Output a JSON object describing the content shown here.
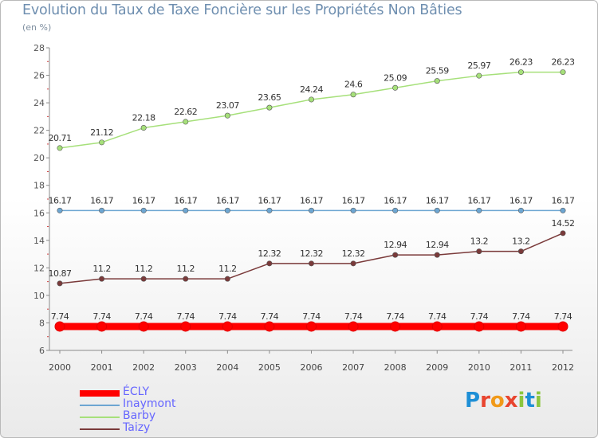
{
  "page": {
    "title": "Evolution du Taux de Taxe Foncière sur les Propriétés Non Bâties",
    "unit": "(en %)"
  },
  "logo": {
    "text": "Proxiti",
    "colors": [
      "#1e8fd6",
      "#e8452f",
      "#f19a1a",
      "#e8452f",
      "#8cc63f",
      "#1e8fd6",
      "#8cc63f"
    ]
  },
  "chart_data": {
    "type": "line",
    "title": "Evolution du Taux de Taxe Foncière sur les Propriétés Non Bâties",
    "ylabel": "(en %)",
    "xlabel": "",
    "ylim": [
      6,
      28
    ],
    "yticks": [
      6,
      8,
      10,
      12,
      14,
      16,
      18,
      20,
      22,
      24,
      26,
      28
    ],
    "categories": [
      "2000",
      "2001",
      "2002",
      "2003",
      "2004",
      "2005",
      "2006",
      "2007",
      "2008",
      "2009",
      "2010",
      "2011",
      "2012"
    ],
    "grid": false,
    "legend_position": "bottom-left",
    "series": [
      {
        "name": "ÉCLY",
        "color": "#ff0000",
        "values": [
          7.74,
          7.74,
          7.74,
          7.74,
          7.74,
          7.74,
          7.74,
          7.74,
          7.74,
          7.74,
          7.74,
          7.74,
          7.74
        ],
        "labels": [
          "7.74",
          "7.74",
          "7.74",
          "7.74",
          "7.74",
          "7.74",
          "7.74",
          "7.74",
          "7.74",
          "7.74",
          "7.74",
          "7.74",
          "7.74"
        ]
      },
      {
        "name": "Inaymont",
        "color": "#6da6d2",
        "values": [
          16.17,
          16.17,
          16.17,
          16.17,
          16.17,
          16.17,
          16.17,
          16.17,
          16.17,
          16.17,
          16.17,
          16.17,
          16.17
        ],
        "labels": [
          "16.17",
          "16.17",
          "16.17",
          "16.17",
          "16.17",
          "16.17",
          "16.17",
          "16.17",
          "16.17",
          "16.17",
          "16.17",
          "16.17",
          "16.17"
        ]
      },
      {
        "name": "Barby",
        "color": "#a6e07a",
        "values": [
          20.71,
          21.12,
          22.18,
          22.62,
          23.07,
          23.65,
          24.24,
          24.6,
          25.09,
          25.59,
          25.97,
          26.23,
          26.23
        ],
        "labels": [
          "20.71",
          "21.12",
          "22.18",
          "22.62",
          "23.07",
          "23.65",
          "24.24",
          "24.6",
          "25.09",
          "25.59",
          "25.97",
          "26.23",
          "26.23"
        ]
      },
      {
        "name": "Taizy",
        "color": "#7a3a3a",
        "values": [
          10.87,
          11.2,
          11.2,
          11.2,
          11.2,
          12.32,
          12.32,
          12.32,
          12.94,
          12.94,
          13.2,
          13.2,
          14.52
        ],
        "labels": [
          "10.87",
          "11.2",
          "11.2",
          "11.2",
          "11.2",
          "12.32",
          "12.32",
          "12.32",
          "12.94",
          "12.94",
          "13.2",
          "13.2",
          "14.52"
        ]
      }
    ]
  }
}
